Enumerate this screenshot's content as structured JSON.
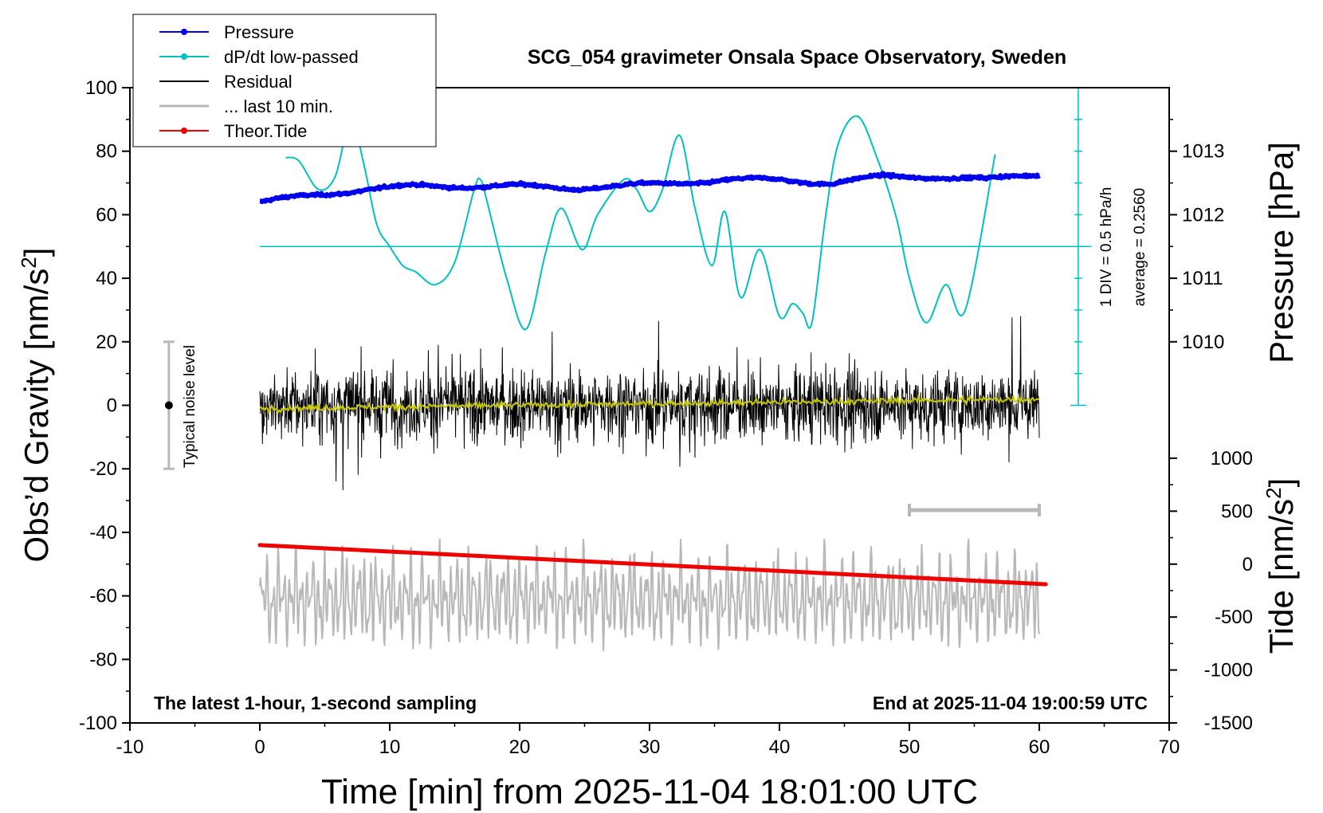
{
  "chart_data": {
    "type": "line",
    "title": "SCG_054 gravimeter Onsala Space Observatory, Sweden",
    "xlabel": "Time [min] from 2025-11-04 18:01:00 UTC",
    "ylabel_left_main": "Obs’d Gravity [nm/s",
    "ylabel_left_sup": "2",
    "ylabel_left_end": "]",
    "ylabel_right_top": "Pressure [hPa]",
    "ylabel_right_bottom_main": "Tide [nm/s",
    "ylabel_right_bottom_sup": "2",
    "ylabel_right_bottom_end": "]",
    "xlim": [
      -10,
      70
    ],
    "ylim": [
      -100,
      100
    ],
    "x_ticks": [
      "-10",
      "0",
      "10",
      "20",
      "30",
      "40",
      "50",
      "60",
      "70"
    ],
    "y_ticks": [
      "100",
      "80",
      "60",
      "40",
      "20",
      "0",
      "-20",
      "-40",
      "-60",
      "-80",
      "-100"
    ],
    "pressure_axis": {
      "ticks": [
        "1013",
        "1012",
        "1011",
        "1010"
      ],
      "values": [
        1013,
        1012,
        1011,
        1010
      ]
    },
    "tide_axis": {
      "ticks": [
        "1000",
        "500",
        "0",
        "-500",
        "-1000",
        "-1500"
      ],
      "values": [
        1000,
        500,
        0,
        -500,
        -1000,
        -1500
      ]
    },
    "legend": [
      {
        "label": "Pressure",
        "color": "#0000ee",
        "marker": true
      },
      {
        "label": "dP/dt low-passed",
        "color": "#00c0c0",
        "marker": true
      },
      {
        "label": "Residual",
        "color": "#000000",
        "marker": false
      },
      {
        "label": "... last 10 min.",
        "color": "#b8b8b8",
        "marker": false
      },
      {
        "label": "Theor.Tide",
        "color": "#ee0000",
        "marker": true
      }
    ],
    "annotations": {
      "noise_label": "Typical noise level",
      "div_label": "1 DIV = 0.5 hPa/h",
      "avg_label": "average = 0.2560",
      "bottom_left": "The latest 1-hour, 1-second sampling",
      "bottom_right": "End at 2025-11-04 19:00:59 UTC"
    },
    "series": [
      {
        "name": "Pressure",
        "color": "#0000ee",
        "unit": "hPa",
        "x": [
          0,
          4,
          8,
          12,
          16,
          20,
          24,
          28,
          32,
          36,
          40,
          44,
          48,
          52,
          56,
          60
        ],
        "values": [
          1012.2,
          1012.3,
          1012.4,
          1012.45,
          1012.45,
          1012.45,
          1012.42,
          1012.45,
          1012.5,
          1012.55,
          1012.55,
          1012.5,
          1012.6,
          1012.6,
          1012.55,
          1012.65
        ]
      },
      {
        "name": "dP/dt low-passed",
        "color": "#00c0c0",
        "unit": "nm/s2",
        "x": [
          2,
          3,
          4.5,
          5.8,
          7,
          8,
          9,
          10,
          11,
          12,
          13.5,
          15,
          16.5,
          17,
          17.5,
          19,
          20.5,
          22,
          23.2,
          24.8,
          26,
          28,
          29,
          30,
          31,
          32.3,
          33.5,
          34.8,
          35.8,
          37,
          38.5,
          40,
          41,
          41.8,
          42.5,
          43.5,
          44.5,
          46,
          47.5,
          49,
          50,
          51.3,
          52.8,
          54.3,
          56.6
        ],
        "values": [
          78,
          77,
          68,
          72,
          90,
          76,
          57,
          50,
          44,
          42,
          38,
          45,
          68,
          71,
          64,
          40,
          24,
          48,
          62,
          49,
          60,
          71,
          68,
          61,
          68,
          85,
          62,
          44,
          61,
          34,
          49,
          28,
          32,
          29,
          26,
          58,
          82,
          91,
          78,
          59,
          40,
          26,
          38,
          30,
          79
        ]
      },
      {
        "name": "Residual",
        "color": "#000000",
        "unit": "nm/s2",
        "x": [
          0,
          60
        ],
        "values": [
          -5,
          5
        ],
        "approx_range": [
          -30,
          27
        ]
      },
      {
        "name": "Residual smoothed",
        "color": "#c8c800",
        "unit": "nm/s2",
        "x": [
          0,
          60
        ],
        "values": [
          -1,
          2
        ]
      },
      {
        "name": "... last 10 min.",
        "color": "#b8b8b8",
        "unit": "nm/s2",
        "x": [
          0,
          60
        ],
        "values": [
          -61,
          -61
        ],
        "approx_range": [
          -85,
          -42
        ]
      },
      {
        "name": "Theor.Tide",
        "color": "#ee0000",
        "unit": "nm/s2",
        "x": [
          0,
          60.5
        ],
        "values": [
          180,
          -190
        ]
      }
    ],
    "noise_bar": {
      "x": -7,
      "y_range": [
        -20,
        20
      ]
    },
    "gray_bar": {
      "x_range": [
        50,
        60
      ],
      "y": -33
    },
    "dpdt_scale": {
      "baseline": 50,
      "top": 100,
      "bottom": 0
    }
  }
}
